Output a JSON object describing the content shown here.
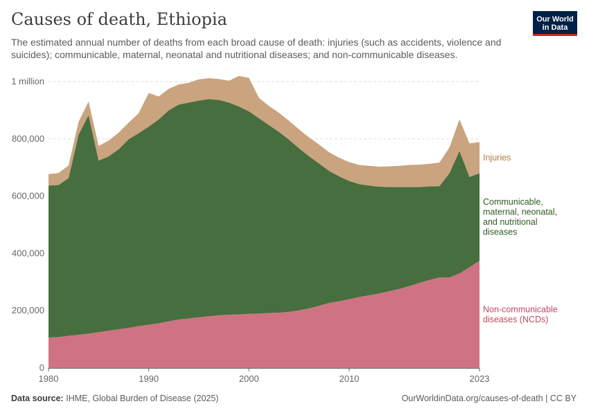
{
  "header": {
    "title": "Causes of death, Ethiopia",
    "subtitle": "The estimated annual number of deaths from each broad cause of death: injuries (such as accidents, violence and suicides); communicable, maternal, neonatal and nutritional diseases; and non-communicable diseases."
  },
  "logo": {
    "line1": "Our World",
    "line2": "in Data"
  },
  "footer": {
    "source_label": "Data source:",
    "source_text": "IHME, Global Burden of Disease (2025)",
    "url": "OurWorldinData.org/causes-of-death | CC BY"
  },
  "colors": {
    "ncd": "#cf7383",
    "communicable": "#476e3e",
    "injuries": "#c9a47e",
    "grid": "#dddddd",
    "axis": "#666666"
  },
  "chart_data": {
    "type": "area",
    "stacked": true,
    "title": "Causes of death, Ethiopia",
    "x": [
      1980,
      1981,
      1982,
      1983,
      1984,
      1985,
      1986,
      1987,
      1988,
      1989,
      1990,
      1991,
      1992,
      1993,
      1994,
      1995,
      1996,
      1997,
      1998,
      1999,
      2000,
      2001,
      2002,
      2003,
      2004,
      2005,
      2006,
      2007,
      2008,
      2009,
      2010,
      2011,
      2012,
      2013,
      2014,
      2015,
      2016,
      2017,
      2018,
      2019,
      2020,
      2021,
      2022,
      2023
    ],
    "xlim": [
      1980,
      2023
    ],
    "ylim": [
      0,
      1000000
    ],
    "y_ticks": [
      0,
      200000,
      400000,
      600000,
      800000,
      1000000
    ],
    "y_tick_labels": [
      "0",
      "200,000",
      "400,000",
      "600,000",
      "800,000",
      "1 million"
    ],
    "x_ticks": [
      1980,
      1990,
      2000,
      2010,
      2023
    ],
    "x_tick_labels": [
      "1980",
      "1990",
      "2000",
      "2010",
      "2023"
    ],
    "series": [
      {
        "name": "Non-communicable diseases (NCDs)",
        "label": "Non-communicable diseases (NCDs)",
        "color": "#cf7383",
        "label_color": "#c2485f",
        "values": [
          106000,
          108000,
          112000,
          116000,
          120000,
          125000,
          130000,
          135000,
          140000,
          146000,
          151000,
          156000,
          163000,
          169000,
          173000,
          177000,
          181000,
          184000,
          186000,
          187000,
          189000,
          190000,
          192000,
          193000,
          196000,
          201000,
          208000,
          217000,
          227000,
          233000,
          240000,
          248000,
          254000,
          260000,
          268000,
          276000,
          286000,
          297000,
          307000,
          316000,
          316000,
          330000,
          352000,
          374000
        ]
      },
      {
        "name": "Communicable, maternal, neonatal, and nutritional diseases",
        "label": "Communicable, maternal, neonatal, and nutritional diseases",
        "color": "#476e3e",
        "label_color": "#2f5a26",
        "values": [
          531000,
          531000,
          551000,
          699000,
          763000,
          599000,
          609000,
          629000,
          659000,
          674000,
          692000,
          712000,
          737000,
          751000,
          754000,
          757000,
          758000,
          752000,
          741000,
          726000,
          707000,
          682000,
          656000,
          631000,
          601000,
          566000,
          531000,
          497000,
          461000,
          436000,
          413000,
          394000,
          383000,
          373000,
          364000,
          356000,
          346000,
          335000,
          327000,
          319000,
          364000,
          428000,
          315000,
          306000
        ]
      },
      {
        "name": "Injuries",
        "label": "Injuries",
        "color": "#c9a47e",
        "label_color": "#b07c4a",
        "values": [
          40000,
          42000,
          44000,
          45000,
          48000,
          51000,
          55000,
          58000,
          58000,
          70000,
          117000,
          80000,
          75000,
          70000,
          69000,
          74000,
          73000,
          73000,
          76000,
          107000,
          117000,
          71000,
          67000,
          67000,
          66000,
          66000,
          66000,
          66000,
          65000,
          65000,
          66000,
          67000,
          69000,
          70000,
          72000,
          74000,
          77000,
          78000,
          79000,
          82000,
          90000,
          110000,
          117000,
          109000
        ]
      }
    ]
  }
}
